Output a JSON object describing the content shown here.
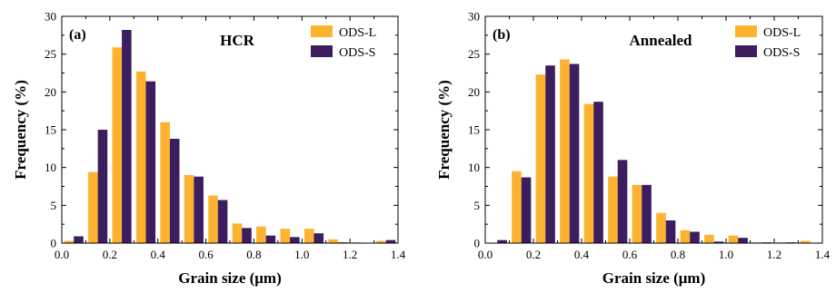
{
  "chart_data": [
    {
      "type": "bar",
      "panel_label": "(a)",
      "title": "HCR",
      "xlabel": "Grain size (μm)",
      "ylabel": "Frequency (%)",
      "xlim": [
        0.0,
        1.4
      ],
      "ylim": [
        0,
        30
      ],
      "xticks": [
        "0.0",
        "0.2",
        "0.4",
        "0.6",
        "0.8",
        "1.0",
        "1.2",
        "1.4"
      ],
      "yticks": [
        "0",
        "5",
        "10",
        "15",
        "20",
        "25",
        "30"
      ],
      "bin_width": 0.1,
      "bin_centers": [
        0.05,
        0.15,
        0.25,
        0.35,
        0.45,
        0.55,
        0.65,
        0.75,
        0.85,
        0.95,
        1.05,
        1.15,
        1.25,
        1.35
      ],
      "legend_position": "top-right",
      "series": [
        {
          "name": "ODS-L",
          "color": "#FDB32F",
          "values": [
            0.3,
            9.4,
            25.9,
            22.7,
            16.0,
            9.0,
            6.3,
            2.6,
            2.2,
            1.9,
            1.9,
            0.5,
            0.1,
            0.3
          ]
        },
        {
          "name": "ODS-S",
          "color": "#3C1E5E",
          "values": [
            0.9,
            15.0,
            28.2,
            21.4,
            13.8,
            8.8,
            5.7,
            2.0,
            1.0,
            0.8,
            1.3,
            0.1,
            0.0,
            0.4
          ]
        }
      ]
    },
    {
      "type": "bar",
      "panel_label": "(b)",
      "title": "Annealed",
      "xlabel": "Grain size (μm)",
      "ylabel": "Frequency (%)",
      "xlim": [
        0.0,
        1.4
      ],
      "ylim": [
        0,
        30
      ],
      "xticks": [
        "0.0",
        "0.2",
        "0.4",
        "0.6",
        "0.8",
        "1.0",
        "1.2",
        "1.4"
      ],
      "yticks": [
        "0",
        "5",
        "10",
        "15",
        "20",
        "25",
        "30"
      ],
      "bin_width": 0.1,
      "bin_centers": [
        0.05,
        0.15,
        0.25,
        0.35,
        0.45,
        0.55,
        0.65,
        0.75,
        0.85,
        0.95,
        1.05,
        1.15,
        1.25,
        1.35
      ],
      "legend_position": "top-right",
      "series": [
        {
          "name": "ODS-L",
          "color": "#FDB32F",
          "values": [
            0.0,
            9.5,
            22.3,
            24.3,
            18.4,
            8.8,
            7.7,
            4.0,
            1.7,
            1.1,
            1.0,
            0.1,
            0.1,
            0.3
          ]
        },
        {
          "name": "ODS-S",
          "color": "#3C1E5E",
          "values": [
            0.4,
            8.7,
            23.5,
            23.7,
            18.7,
            11.0,
            7.7,
            3.0,
            1.5,
            0.2,
            0.7,
            0.1,
            0.1,
            0.0
          ]
        }
      ]
    }
  ]
}
